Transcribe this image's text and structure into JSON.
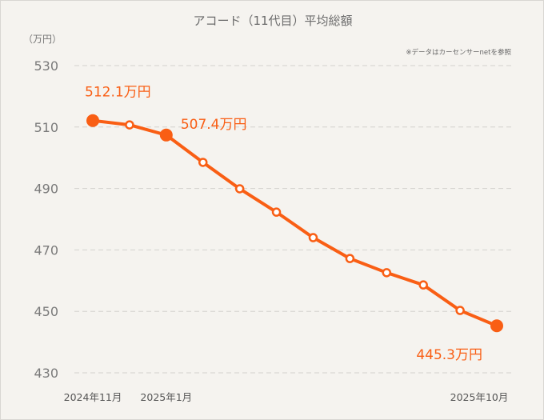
{
  "chart_data": {
    "type": "line",
    "title": "アコード（11代目）平均総額",
    "note": "※データはカーセンサーnetを参照",
    "ylabel": "（万円）",
    "xlabel": "",
    "ylim": [
      430,
      530
    ],
    "yticks": [
      530,
      510,
      490,
      470,
      450,
      430
    ],
    "grid": true,
    "color": "#f95e14",
    "x_tick_labels": [
      {
        "index": 0,
        "label": "2024年11月"
      },
      {
        "index": 2,
        "label": "2025年1月"
      },
      {
        "index": 11,
        "label": "2025年10月"
      }
    ],
    "values": [
      512.1,
      510.7,
      507.4,
      498.5,
      489.9,
      482.3,
      474.0,
      467.2,
      462.6,
      458.6,
      450.3,
      445.3
    ],
    "highlighted": [
      0,
      2,
      11
    ],
    "annotations": [
      {
        "index": 0,
        "label": "512.1万円"
      },
      {
        "index": 2,
        "label": "507.4万円"
      },
      {
        "index": 11,
        "label": "445.3万円"
      }
    ]
  }
}
